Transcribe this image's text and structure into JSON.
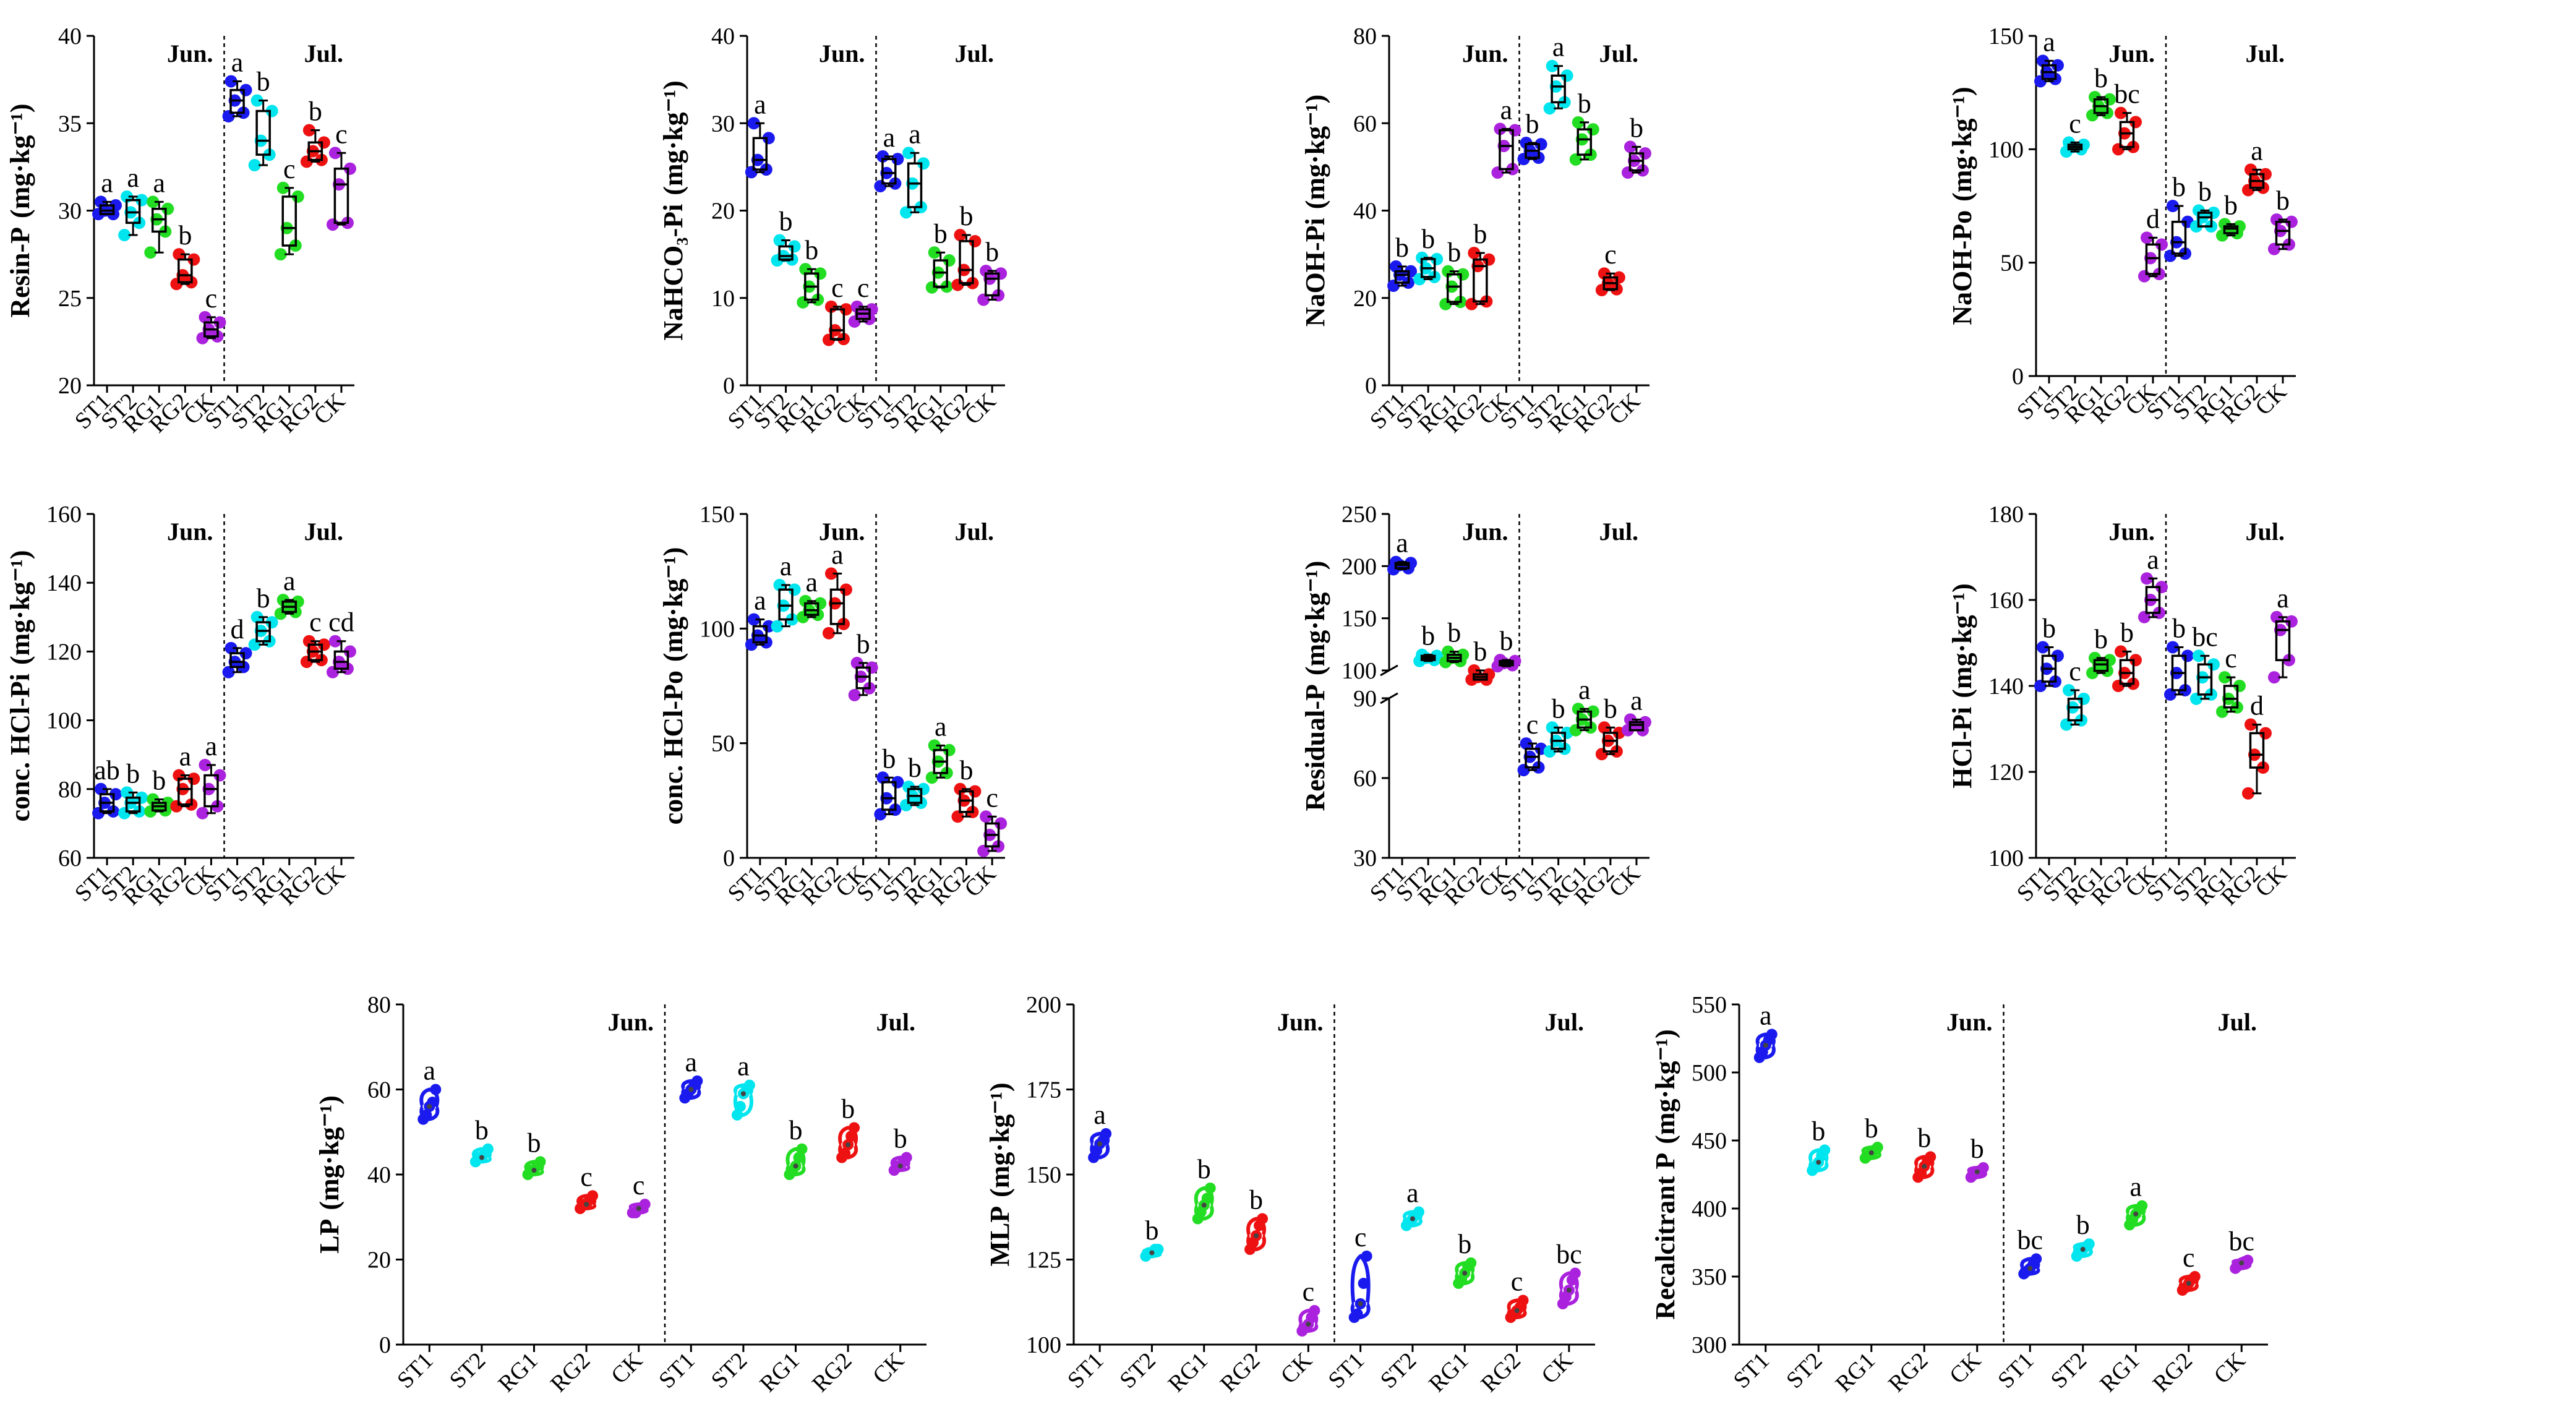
{
  "figure": {
    "treatments": [
      "ST1",
      "ST2",
      "RG1",
      "RG2",
      "CK"
    ],
    "periods": [
      "Jun.",
      "Jul."
    ],
    "colors": {
      "ST1": "#1a1aee",
      "ST2": "#00e5ee",
      "RG1": "#22dd22",
      "RG2": "#ee1111",
      "CK": "#aa22dd"
    }
  },
  "chart_data": [
    {
      "type": "box",
      "ylabel": "Resin-P",
      "unit": "(mg·kg⁻¹)",
      "ylim": [
        20,
        40
      ],
      "ticks": [
        20,
        25,
        30,
        35,
        40
      ],
      "stats": [
        [
          29.8,
          29.8,
          30.0,
          30.3,
          30.5
        ],
        [
          28.6,
          29.3,
          29.9,
          30.6,
          30.8
        ],
        [
          27.6,
          28.8,
          29.5,
          30.1,
          30.5
        ],
        [
          25.8,
          25.9,
          26.3,
          27.2,
          27.5
        ],
        [
          22.7,
          22.8,
          23.2,
          23.6,
          23.9
        ],
        [
          35.4,
          35.6,
          36.3,
          36.9,
          37.4
        ],
        [
          32.6,
          33.2,
          34.0,
          35.7,
          36.3
        ],
        [
          27.5,
          28.0,
          29.0,
          30.8,
          31.3
        ],
        [
          32.8,
          32.9,
          33.4,
          33.9,
          34.6
        ],
        [
          29.2,
          29.3,
          31.5,
          32.4,
          33.3
        ]
      ],
      "letters": [
        "a",
        "a",
        "a",
        "b",
        "c",
        "a",
        "b",
        "c",
        "b",
        "c"
      ]
    },
    {
      "type": "box",
      "ylabel": "NaHCO₃-Pi",
      "unit": "(mg·kg⁻¹)",
      "ylim": [
        0,
        40
      ],
      "ticks": [
        0,
        10,
        20,
        30,
        40
      ],
      "stats": [
        [
          24.4,
          24.7,
          25.8,
          28.3,
          30.0
        ],
        [
          14.3,
          14.4,
          14.8,
          15.9,
          16.6
        ],
        [
          9.5,
          9.8,
          11.3,
          12.8,
          13.3
        ],
        [
          5.2,
          5.3,
          6.3,
          8.7,
          9.0
        ],
        [
          7.3,
          7.6,
          8.2,
          8.7,
          9.0
        ],
        [
          22.8,
          23.1,
          24.3,
          25.9,
          26.2
        ],
        [
          19.8,
          20.4,
          23.1,
          25.4,
          26.6
        ],
        [
          11.2,
          11.3,
          12.9,
          14.3,
          15.2
        ],
        [
          11.5,
          11.7,
          13.2,
          16.5,
          17.2
        ],
        [
          9.8,
          10.3,
          12.2,
          12.8,
          13.1
        ]
      ],
      "letters": [
        "a",
        "b",
        "b",
        "c",
        "c",
        "a",
        "a",
        "b",
        "b",
        "b"
      ]
    },
    {
      "type": "box",
      "ylabel": "NaOH-Pi",
      "unit": "(mg·kg⁻¹)",
      "ylim": [
        0,
        80
      ],
      "ticks": [
        0,
        20,
        40,
        60,
        80
      ],
      "stats": [
        [
          22.8,
          23.5,
          25.3,
          26.1,
          27.2
        ],
        [
          24.3,
          24.8,
          26.8,
          28.9,
          29.2
        ],
        [
          18.6,
          19.1,
          22.6,
          25.4,
          26.1
        ],
        [
          18.6,
          19.2,
          27.3,
          28.8,
          30.3
        ],
        [
          48.7,
          49.5,
          54.8,
          58.4,
          58.7
        ],
        [
          51.8,
          52.1,
          53.7,
          55.2,
          55.5
        ],
        [
          63.4,
          64.8,
          68.4,
          70.9,
          73.1
        ],
        [
          51.7,
          52.8,
          56.3,
          58.6,
          60.2
        ],
        [
          21.8,
          22.0,
          23.4,
          24.7,
          25.6
        ],
        [
          48.7,
          49.2,
          51.4,
          53.1,
          54.6
        ]
      ],
      "letters": [
        "b",
        "b",
        "b",
        "b",
        "a",
        "b",
        "a",
        "b",
        "c",
        "b"
      ]
    },
    {
      "type": "box",
      "ylabel": "NaOH-Po",
      "unit": "(mg·kg⁻¹)",
      "ylim": [
        0,
        150
      ],
      "ticks": [
        0,
        50,
        100,
        150
      ],
      "stats": [
        [
          130,
          131,
          134,
          137,
          139
        ],
        [
          99,
          100,
          101,
          102,
          103
        ],
        [
          115,
          116,
          119,
          122,
          123
        ],
        [
          100,
          101,
          107,
          112,
          116
        ],
        [
          44,
          45,
          52,
          58,
          61
        ],
        [
          53,
          54,
          59,
          68,
          75
        ],
        [
          66,
          66,
          70,
          72,
          73
        ],
        [
          62,
          63,
          65,
          66,
          67
        ],
        [
          82,
          83,
          86,
          89,
          91
        ],
        [
          56,
          58,
          64,
          68,
          69
        ]
      ],
      "letters": [
        "a",
        "c",
        "b",
        "bc",
        "d",
        "b",
        "b",
        "b",
        "a",
        "b"
      ]
    },
    {
      "type": "box",
      "ylabel": "conc. HCl-Pi",
      "unit": "(mg·kg⁻¹)",
      "ylim": [
        60,
        160
      ],
      "ticks": [
        60,
        80,
        100,
        120,
        140,
        160
      ],
      "stats": [
        [
          73,
          73.5,
          76,
          78.5,
          80
        ],
        [
          73,
          73.5,
          76,
          77.5,
          79
        ],
        [
          73.5,
          73.8,
          75,
          76,
          77
        ],
        [
          75,
          75.5,
          80,
          83,
          84
        ],
        [
          73,
          75,
          80,
          84,
          87
        ],
        [
          114,
          115.5,
          117,
          119.5,
          121
        ],
        [
          122,
          123,
          126,
          128.5,
          130
        ],
        [
          131,
          131.5,
          133,
          134.5,
          135
        ],
        [
          117,
          117.5,
          120,
          122,
          123
        ],
        [
          114,
          115,
          117,
          120,
          123
        ]
      ],
      "letters": [
        "ab",
        "b",
        "b",
        "a",
        "a",
        "d",
        "b",
        "a",
        "c",
        "cd"
      ]
    },
    {
      "type": "box",
      "ylabel": "conc. HCl-Po",
      "unit": "(mg·kg⁻¹)",
      "ylim": [
        0,
        150
      ],
      "ticks": [
        0,
        50,
        100,
        150
      ],
      "stats": [
        [
          93,
          94,
          97,
          101,
          104
        ],
        [
          101,
          104,
          110,
          117,
          119
        ],
        [
          105,
          106,
          108,
          111,
          112
        ],
        [
          98,
          102,
          111,
          117,
          124
        ],
        [
          71,
          74,
          79,
          83,
          85
        ],
        [
          19,
          21,
          26,
          33,
          35
        ],
        [
          23,
          24,
          27,
          30,
          31
        ],
        [
          35,
          37,
          42,
          47,
          49
        ],
        [
          18,
          20,
          25,
          29,
          30
        ],
        [
          3,
          5,
          10,
          15,
          18
        ]
      ],
      "letters": [
        "a",
        "a",
        "a",
        "a",
        "b",
        "b",
        "b",
        "a",
        "b",
        "c"
      ]
    },
    {
      "type": "box-broken",
      "ylabel": "Residual-P",
      "unit": "(mg·kg⁻¹)",
      "ylim": [
        30,
        250
      ],
      "break": [
        90,
        100
      ],
      "ticks": [
        30,
        60,
        90,
        100,
        150,
        200,
        250
      ],
      "stats": [
        [
          197,
          198,
          201,
          203,
          204
        ],
        [
          109,
          110,
          112,
          114,
          115
        ],
        [
          108,
          109,
          112,
          115,
          118
        ],
        [
          97,
          97,
          98,
          99,
          100
        ],
        [
          104,
          105,
          107,
          109,
          110
        ],
        [
          63,
          64,
          68,
          71,
          73
        ],
        [
          70,
          71,
          74,
          77,
          79
        ],
        [
          78,
          79,
          82,
          85,
          86
        ],
        [
          69,
          70,
          74,
          77,
          79
        ],
        [
          78,
          78,
          80,
          81,
          82
        ]
      ],
      "letters": [
        "a",
        "b",
        "b",
        "b",
        "b",
        "c",
        "b",
        "a",
        "b",
        "a"
      ]
    },
    {
      "type": "box",
      "ylabel": "HCl-Pi",
      "unit": "(mg·kg⁻¹)",
      "ylim": [
        100,
        180
      ],
      "ticks": [
        100,
        120,
        140,
        160,
        180
      ],
      "stats": [
        [
          140,
          141,
          144,
          147,
          149
        ],
        [
          131,
          132,
          135,
          137,
          139
        ],
        [
          143,
          143.5,
          145,
          146,
          146.5
        ],
        [
          140,
          140.5,
          143,
          146,
          148
        ],
        [
          156,
          157,
          160,
          163,
          165
        ],
        [
          138,
          139,
          143,
          147,
          149
        ],
        [
          137,
          138,
          142,
          145,
          147
        ],
        [
          134,
          135,
          137,
          140,
          142
        ],
        [
          115,
          121,
          124,
          129,
          131
        ],
        [
          142,
          146,
          153,
          155,
          156
        ]
      ],
      "letters": [
        "b",
        "c",
        "b",
        "b",
        "a",
        "b",
        "bc",
        "c",
        "d",
        "a"
      ]
    },
    {
      "type": "violin",
      "ylabel": "LP",
      "unit": "(mg·kg⁻¹)",
      "ylim": [
        0,
        80
      ],
      "ticks": [
        0,
        20,
        40,
        60,
        80
      ],
      "pts": [
        [
          53,
          54,
          56,
          57,
          60
        ],
        [
          43,
          44,
          44,
          45,
          46
        ],
        [
          40,
          41,
          41,
          42,
          43
        ],
        [
          32,
          33,
          33,
          34,
          35
        ],
        [
          31,
          31,
          32,
          32,
          33
        ],
        [
          58,
          59,
          60,
          61,
          62
        ],
        [
          54,
          56,
          59,
          60,
          61
        ],
        [
          40,
          41,
          42,
          44,
          46
        ],
        [
          44,
          45,
          47,
          49,
          51
        ],
        [
          41,
          42,
          42,
          43,
          44
        ]
      ],
      "letters": [
        "a",
        "b",
        "b",
        "c",
        "c",
        "a",
        "a",
        "b",
        "b",
        "b"
      ]
    },
    {
      "type": "violin",
      "ylabel": "MLP",
      "unit": "(mg·kg⁻¹)",
      "ylim": [
        100,
        200
      ],
      "ticks": [
        100,
        125,
        150,
        175,
        200
      ],
      "pts": [
        [
          155,
          157,
          159,
          160,
          162
        ],
        [
          126,
          127,
          127,
          128,
          128
        ],
        [
          137,
          139,
          141,
          143,
          146
        ],
        [
          128,
          130,
          132,
          135,
          137
        ],
        [
          104,
          105,
          106,
          108,
          110
        ],
        [
          108,
          109,
          112,
          118,
          126
        ],
        [
          135,
          136,
          137,
          138,
          139
        ],
        [
          118,
          119,
          121,
          123,
          124
        ],
        [
          108,
          109,
          110,
          111,
          113
        ],
        [
          112,
          114,
          116,
          119,
          121
        ]
      ],
      "letters": [
        "a",
        "b",
        "b",
        "b",
        "c",
        "c",
        "a",
        "b",
        "c",
        "bc"
      ]
    },
    {
      "type": "violin",
      "ylabel": "Recalcitrant P",
      "unit": "(mg·kg⁻¹)",
      "ylim": [
        300,
        550
      ],
      "ticks": [
        300,
        350,
        400,
        450,
        500,
        550
      ],
      "pts": [
        [
          511,
          515,
          520,
          524,
          528
        ],
        [
          428,
          431,
          434,
          439,
          443
        ],
        [
          437,
          439,
          441,
          443,
          445
        ],
        [
          423,
          426,
          431,
          435,
          438
        ],
        [
          423,
          425,
          427,
          428,
          430
        ],
        [
          352,
          354,
          356,
          359,
          363
        ],
        [
          365,
          368,
          370,
          372,
          374
        ],
        [
          388,
          392,
          396,
          399,
          402
        ],
        [
          340,
          342,
          345,
          348,
          350
        ],
        [
          356,
          358,
          360,
          361,
          362
        ]
      ],
      "letters": [
        "a",
        "b",
        "b",
        "b",
        "b",
        "bc",
        "b",
        "a",
        "c",
        "bc"
      ]
    }
  ]
}
